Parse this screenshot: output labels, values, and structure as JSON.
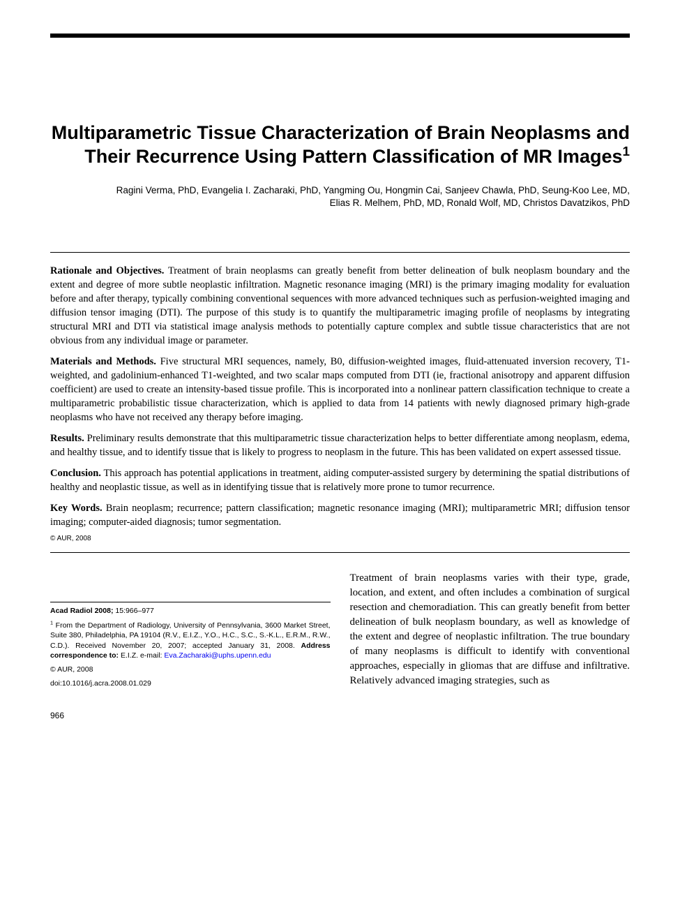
{
  "title": "Multiparametric Tissue Characterization of Brain Neoplasms and Their Recurrence Using Pattern Classification of MR Images",
  "title_sup": "1",
  "authors_line1": "Ragini Verma, PhD, Evangelia I. Zacharaki, PhD, Yangming Ou, Hongmin Cai, Sanjeev Chawla, PhD, Seung-Koo Lee, MD,",
  "authors_line2": "Elias R. Melhem, PhD, MD, Ronald Wolf, MD, Christos Davatzikos, PhD",
  "abstract": {
    "rationale_head": "Rationale and Objectives.",
    "rationale_body": " Treatment of brain neoplasms can greatly benefit from better delineation of bulk neoplasm boundary and the extent and degree of more subtle neoplastic infiltration. Magnetic resonance imaging (MRI) is the primary imaging modality for evaluation before and after therapy, typically combining conventional sequences with more advanced techniques such as perfusion-weighted imaging and diffusion tensor imaging (DTI). The purpose of this study is to quantify the multiparametric imaging profile of neoplasms by integrating structural MRI and DTI via statistical image analysis methods to potentially capture complex and subtle tissue characteristics that are not obvious from any individual image or parameter.",
    "materials_head": "Materials and Methods.",
    "materials_body": " Five structural MRI sequences, namely, B0, diffusion-weighted images, fluid-attenuated inversion recovery, T1-weighted, and gadolinium-enhanced T1-weighted, and two scalar maps computed from DTI (ie, fractional anisotropy and apparent diffusion coefficient) are used to create an intensity-based tissue profile. This is incorporated into a nonlinear pattern classification technique to create a multiparametric probabilistic tissue characterization, which is applied to data from 14 patients with newly diagnosed primary high-grade neoplasms who have not received any therapy before imaging.",
    "results_head": "Results.",
    "results_body": " Preliminary results demonstrate that this multiparametric tissue characterization helps to better differentiate among neoplasm, edema, and healthy tissue, and to identify tissue that is likely to progress to neoplasm in the future. This has been validated on expert assessed tissue.",
    "conclusion_head": "Conclusion.",
    "conclusion_body": " This approach has potential applications in treatment, aiding computer-assisted surgery by determining the spatial distributions of healthy and neoplastic tissue, as well as in identifying tissue that is relatively more prone to tumor recurrence.",
    "keywords_head": "Key Words.",
    "keywords_body": " Brain neoplasm; recurrence; pattern classification; magnetic resonance imaging (MRI); multiparametric MRI; diffusion tensor imaging; computer-aided diagnosis; tumor segmentation.",
    "copyright": "© AUR, 2008"
  },
  "footnotes": {
    "journal_bold": "Acad Radiol 2008; ",
    "journal_rest": "15:966–977",
    "affil_sup": "1",
    "affil_pre": " From the Department of Radiology, University of Pennsylvania, 3600 Market Street, Suite 380, Philadelphia, PA 19104 (R.V., E.I.Z., Y.O., H.C., S.C., S.-K.L., E.R.M., R.W., C.D.). Received November 20, 2007; accepted January 31, 2008. ",
    "affil_bold": "Address correspondence to:",
    "affil_post": " E.I.Z. e-mail: ",
    "email": "Eva.Zacharaki@uphs.upenn.edu",
    "copy_line1": "© AUR, 2008",
    "doi": "doi:10.1016/j.acra.2008.01.029"
  },
  "body_text": "Treatment of brain neoplasms varies with their type, grade, location, and extent, and often includes a combination of surgical resection and chemoradiation. This can greatly benefit from better delineation of bulk neoplasm boundary, as well as knowledge of the extent and degree of neoplastic infiltration. The true boundary of many neoplasms is difficult to identify with conventional approaches, especially in gliomas that are diffuse and infiltrative. Relatively advanced imaging strategies, such as",
  "page_number": "966"
}
